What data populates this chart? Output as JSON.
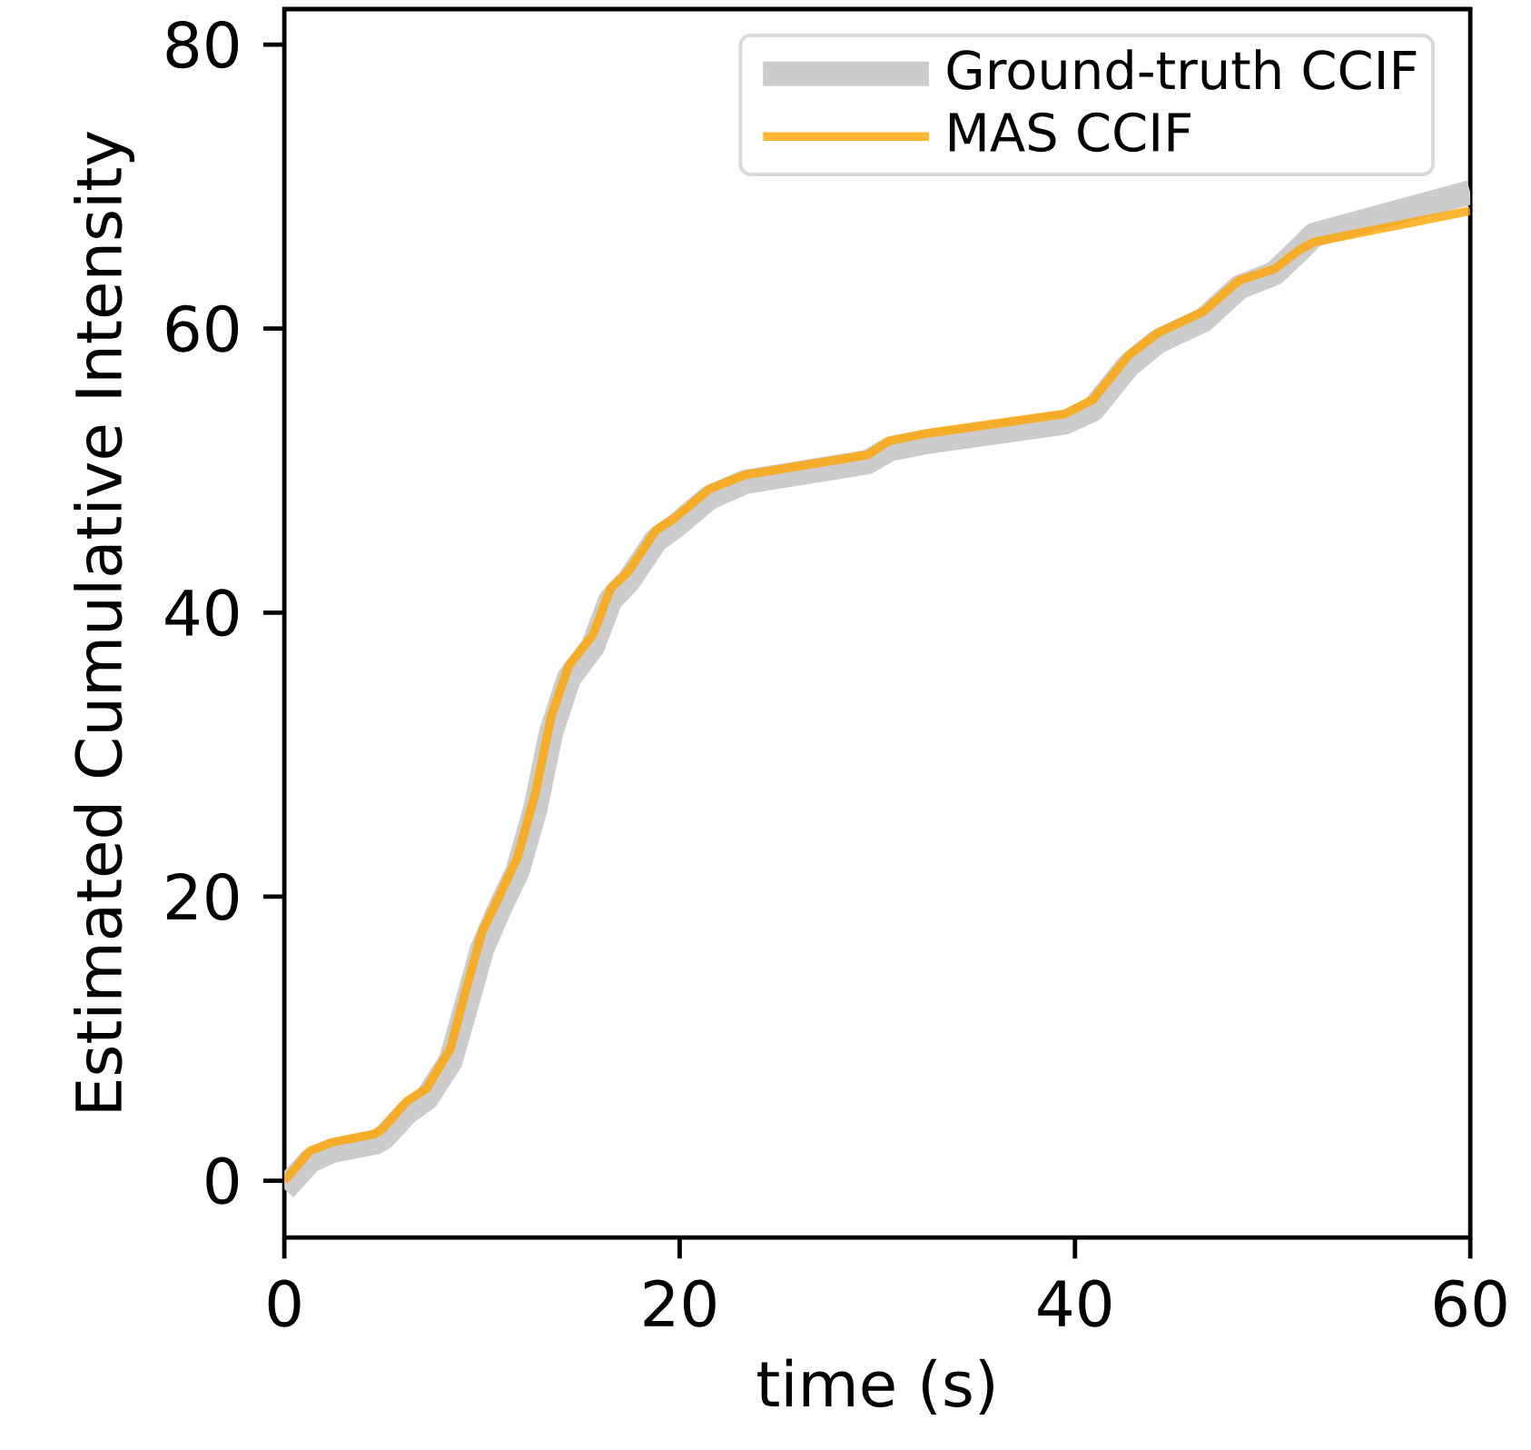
{
  "chart_data": {
    "type": "line",
    "xlabel": "time (s)",
    "ylabel": "Estimated Cumulative Intensity",
    "xlim": [
      0,
      60
    ],
    "ylim": [
      -4,
      82.5
    ],
    "xticks": [
      0,
      20,
      40,
      60
    ],
    "yticks": [
      0,
      20,
      40,
      60,
      80
    ],
    "grid": false,
    "legend": "top right",
    "series": [
      {
        "name": "MAS CCIF",
        "color": "#ffa500",
        "x": [
          0,
          1.3,
          2.4,
          4.6,
          5.0,
          6.2,
          7.2,
          8.4,
          9.1,
          10.0,
          10.9,
          11.8,
          12.7,
          13.5,
          14.4,
          15.6,
          16.5,
          17.4,
          18.8,
          19.7,
          21.5,
          23.3,
          29.5,
          30.6,
          32.4,
          39.5,
          40.9,
          42.7,
          44.2,
          46.5,
          48.3,
          50.1,
          51.3,
          52.1,
          60
        ],
        "values": [
          0,
          2.1,
          2.7,
          3.3,
          3.7,
          5.6,
          6.5,
          9.3,
          13.0,
          17.5,
          20.1,
          22.8,
          27.3,
          32.7,
          36.3,
          38.4,
          41.7,
          42.9,
          45.8,
          46.6,
          48.7,
          49.7,
          51.1,
          52.1,
          52.6,
          54.0,
          55.0,
          58.1,
          59.7,
          61.2,
          63.4,
          64.2,
          65.5,
          66.1,
          68.3
        ]
      },
      {
        "name": "Ground-truth CCIF",
        "color": "#cccccc",
        "x": [
          0,
          1.3,
          2.4,
          4.6,
          5.0,
          6.2,
          7.2,
          8.4,
          9.1,
          10.0,
          10.9,
          11.8,
          12.7,
          13.5,
          14.4,
          15.6,
          16.5,
          17.4,
          18.8,
          19.7,
          21.5,
          23.3,
          29.5,
          30.6,
          32.4,
          39.5,
          40.9,
          42.7,
          44.2,
          46.5,
          48.3,
          50.1,
          51.3,
          52.1,
          60
        ],
        "values": [
          -0.6,
          1.4,
          2.1,
          2.7,
          3.0,
          4.8,
          5.8,
          8.4,
          11.8,
          16.3,
          19.2,
          21.8,
          26.2,
          31.6,
          35.4,
          37.6,
          40.9,
          42.2,
          45.1,
          46.0,
          48.1,
          49.2,
          50.6,
          51.5,
          52.0,
          53.4,
          54.3,
          57.4,
          59.1,
          60.6,
          62.9,
          63.9,
          65.5,
          66.6,
          69.6
        ]
      }
    ]
  }
}
